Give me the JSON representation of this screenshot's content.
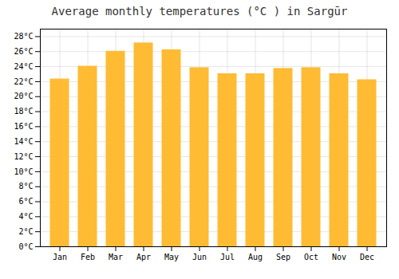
{
  "chart_data": {
    "type": "bar",
    "title": "Average monthly temperatures (°C ) in Sargūr",
    "categories": [
      "Jan",
      "Feb",
      "Mar",
      "Apr",
      "May",
      "Jun",
      "Jul",
      "Aug",
      "Sep",
      "Oct",
      "Nov",
      "Dec"
    ],
    "values": [
      22.3,
      24.0,
      26.0,
      27.1,
      26.2,
      23.8,
      23.0,
      23.0,
      23.7,
      23.8,
      23.0,
      22.2
    ],
    "color": "#FFBB33",
    "ylim": [
      0,
      29
    ],
    "yticks": [
      {
        "value": 0,
        "label": "0°C"
      },
      {
        "value": 2,
        "label": "2°C"
      },
      {
        "value": 4,
        "label": "4°C"
      },
      {
        "value": 6,
        "label": "6°C"
      },
      {
        "value": 8,
        "label": "8°C"
      },
      {
        "value": 10,
        "label": "10°C"
      },
      {
        "value": 12,
        "label": "12°C"
      },
      {
        "value": 14,
        "label": "14°C"
      },
      {
        "value": 16,
        "label": "16°C"
      },
      {
        "value": 18,
        "label": "18°C"
      },
      {
        "value": 20,
        "label": "20°C"
      },
      {
        "value": 22,
        "label": "22°C"
      },
      {
        "value": 24,
        "label": "24°C"
      },
      {
        "value": 26,
        "label": "26°C"
      },
      {
        "value": 28,
        "label": "28°C"
      }
    ],
    "grid": true
  }
}
